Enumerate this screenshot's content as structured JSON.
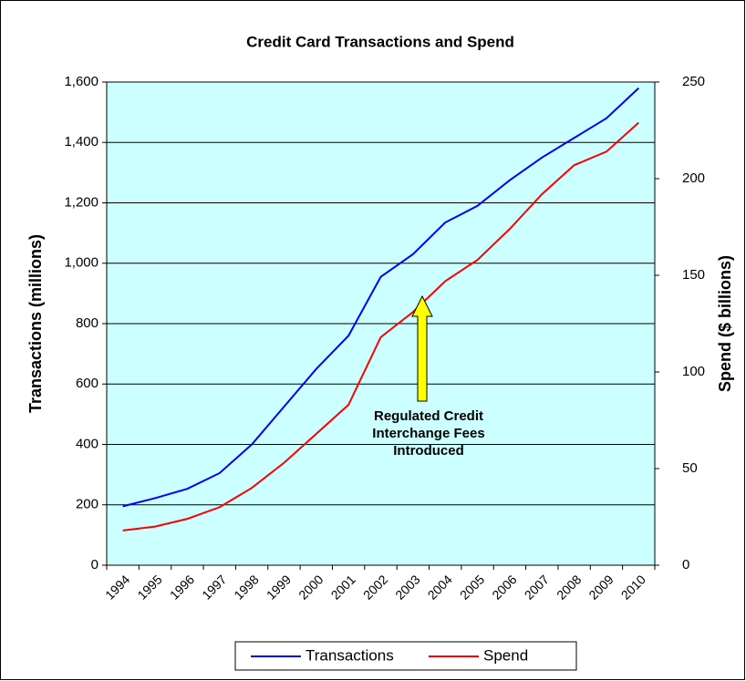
{
  "chart_data": {
    "type": "line",
    "title": "Credit Card Transactions and Spend",
    "y_label": "Transactions  (millions)",
    "y2_label": "Spend ($ billions)",
    "annotation": [
      "Regulated  Credit",
      "Interchange Fees",
      "Introduced"
    ],
    "categories": [
      "1994",
      "1995",
      "1996",
      "1997",
      "1998",
      "1999",
      "2000",
      "2001",
      "2002",
      "2003",
      "2004",
      "2005",
      "2006",
      "2007",
      "2008",
      "2009",
      "2010"
    ],
    "series": [
      {
        "name": "Transactions",
        "color": "#0000ff",
        "values": [
          195,
          222,
          253,
          305,
          400,
          525,
          650,
          760,
          955,
          1030,
          1135,
          1190,
          1275,
          1350,
          1415,
          1480,
          1580
        ]
      },
      {
        "name": "Spend",
        "color": "#ff0000",
        "axis": "y2",
        "values": [
          18,
          20,
          24,
          30,
          40,
          53,
          68,
          83,
          118,
          131,
          147,
          158,
          174,
          192,
          207,
          214,
          229
        ]
      }
    ],
    "ylim": [
      0,
      1600
    ],
    "yticks": [
      0,
      200,
      400,
      600,
      800,
      {
        "value": 1000,
        "label": "1,000"
      },
      {
        "value": 1200,
        "label": "1,200"
      },
      {
        "value": 1400,
        "label": "1,400"
      },
      {
        "value": 1600,
        "label": "1,600"
      }
    ],
    "y2lim": [
      0,
      250
    ],
    "y2ticks": [
      0,
      50,
      100,
      150,
      200,
      250
    ],
    "grid": true,
    "legend": "bottom",
    "plot_color": "#ccffff"
  }
}
